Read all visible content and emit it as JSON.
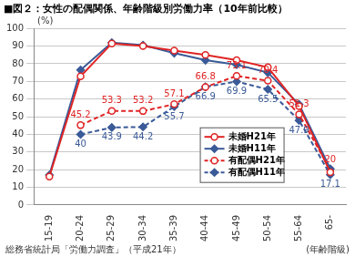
{
  "chart_data": {
    "type": "line",
    "title": "■図２：女性の配偶関係、年齢階級別労働力率（10年前比較）",
    "y_label": "(%)",
    "x_label": "(年齢階級)",
    "source": "総務省統計局「労働力調査」（平成21年）",
    "categories": [
      "15-19",
      "20-24",
      "25-29",
      "30-34",
      "35-39",
      "40-44",
      "45-49",
      "50-54",
      "55-64",
      "65-"
    ],
    "ylim": [
      0,
      100
    ],
    "yticks": [
      0,
      10,
      20,
      30,
      40,
      50,
      60,
      70,
      80,
      90,
      100
    ],
    "grid": true,
    "legend": "right",
    "series": [
      {
        "name": "未婚H21年",
        "color": "#e02424",
        "marker": "circle_open",
        "line_style": "solid",
        "values": [
          16.1,
          72.9,
          91.5,
          90.0,
          87.5,
          85.0,
          82.0,
          78.0,
          56.0,
          18.5
        ]
      },
      {
        "name": "未婚H11年",
        "color": "#3a5a98",
        "marker": "diamond",
        "line_style": "solid",
        "values": [
          17.0,
          76.5,
          92.0,
          90.5,
          86.0,
          82.0,
          79.5,
          75.0,
          57.0,
          20.5
        ]
      },
      {
        "name": "有配偶H21年",
        "color": "#e02424",
        "marker": "circle_open",
        "line_style": "dashed",
        "data_labels": true,
        "values": [
          null,
          45.2,
          53.3,
          53.2,
          57.1,
          66.8,
          73.1,
          70.4,
          51.3,
          20
        ]
      },
      {
        "name": "有配偶H11年",
        "color": "#3a5a98",
        "marker": "diamond",
        "line_style": "dashed",
        "data_labels": true,
        "values": [
          null,
          40,
          43.9,
          44.2,
          55.7,
          66.9,
          69.9,
          65.5,
          47.9,
          17.1
        ]
      }
    ]
  }
}
